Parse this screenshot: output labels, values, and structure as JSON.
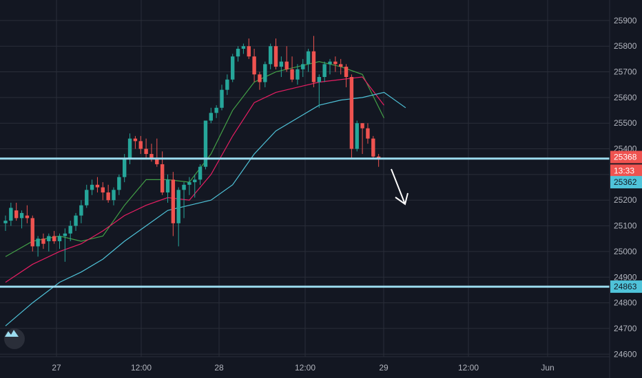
{
  "chart_data": {
    "type": "candlestick",
    "x_ticks": [
      "27",
      "12:00",
      "28",
      "12:00",
      "29",
      "12:00",
      "Jun"
    ],
    "y_ticks": [
      24600,
      24700,
      24800,
      24900,
      25000,
      25100,
      25200,
      25300,
      25400,
      25500,
      25600,
      25700,
      25800,
      25900
    ],
    "ylim": [
      24590,
      25980
    ],
    "grid": true,
    "candles": [
      [
        25110,
        25140,
        25080,
        25120
      ],
      [
        25120,
        25190,
        25100,
        25170
      ],
      [
        25160,
        25190,
        25120,
        25130
      ],
      [
        25130,
        25160,
        25090,
        25150
      ],
      [
        25140,
        25180,
        25110,
        25130
      ],
      [
        25130,
        25140,
        25000,
        25020
      ],
      [
        25020,
        25060,
        24980,
        25050
      ],
      [
        25050,
        25070,
        25010,
        25030
      ],
      [
        25040,
        25070,
        25000,
        25060
      ],
      [
        25060,
        25080,
        25030,
        25040
      ],
      [
        25040,
        25070,
        25010,
        25060
      ],
      [
        25060,
        25090,
        24960,
        25070
      ],
      [
        25070,
        25120,
        25040,
        25100
      ],
      [
        25100,
        25150,
        25080,
        25140
      ],
      [
        25140,
        25200,
        25110,
        25180
      ],
      [
        25180,
        25260,
        25170,
        25240
      ],
      [
        25240,
        25280,
        25220,
        25260
      ],
      [
        25260,
        25290,
        25230,
        25250
      ],
      [
        25250,
        25270,
        25200,
        25230
      ],
      [
        25230,
        25260,
        25190,
        25200
      ],
      [
        25200,
        25250,
        25180,
        25240
      ],
      [
        25240,
        25300,
        25220,
        25290
      ],
      [
        25290,
        25380,
        25270,
        25360
      ],
      [
        25360,
        25460,
        25340,
        25440
      ],
      [
        25440,
        25450,
        25400,
        25430
      ],
      [
        25430,
        25450,
        25380,
        25400
      ],
      [
        25400,
        25440,
        25360,
        25380
      ],
      [
        25380,
        25420,
        25350,
        25360
      ],
      [
        25360,
        25440,
        25330,
        25340
      ],
      [
        25340,
        25390,
        25220,
        25230
      ],
      [
        25230,
        25300,
        25190,
        25280
      ],
      [
        25280,
        25310,
        25060,
        25110
      ],
      [
        25110,
        25250,
        25020,
        25240
      ],
      [
        25240,
        25270,
        25130,
        25260
      ],
      [
        25260,
        25290,
        25220,
        25270
      ],
      [
        25270,
        25300,
        25210,
        25280
      ],
      [
        25280,
        25340,
        25260,
        25330
      ],
      [
        25330,
        25500,
        25320,
        25510
      ],
      [
        25510,
        25560,
        25500,
        25540
      ],
      [
        25540,
        25570,
        25520,
        25560
      ],
      [
        25560,
        25650,
        25550,
        25630
      ],
      [
        25630,
        25690,
        25610,
        25670
      ],
      [
        25670,
        25770,
        25660,
        25760
      ],
      [
        25760,
        25800,
        25740,
        25790
      ],
      [
        25790,
        25810,
        25770,
        25800
      ],
      [
        25800,
        25830,
        25750,
        25760
      ],
      [
        25760,
        25790,
        25660,
        25690
      ],
      [
        25690,
        25700,
        25630,
        25660
      ],
      [
        25660,
        25740,
        25640,
        25730
      ],
      [
        25730,
        25810,
        25710,
        25800
      ],
      [
        25800,
        25830,
        25710,
        25720
      ],
      [
        25720,
        25760,
        25680,
        25740
      ],
      [
        25740,
        25800,
        25700,
        25710
      ],
      [
        25710,
        25760,
        25660,
        25670
      ],
      [
        25670,
        25730,
        25650,
        25710
      ],
      [
        25710,
        25750,
        25680,
        25730
      ],
      [
        25730,
        25790,
        25700,
        25780
      ],
      [
        25780,
        25840,
        25640,
        25660
      ],
      [
        25660,
        25690,
        25560,
        25680
      ],
      [
        25680,
        25740,
        25660,
        25730
      ],
      [
        25730,
        25750,
        25690,
        25740
      ],
      [
        25740,
        25760,
        25700,
        25730
      ],
      [
        25730,
        25750,
        25690,
        25720
      ],
      [
        25720,
        25730,
        25640,
        25680
      ],
      [
        25680,
        25690,
        25360,
        25400
      ],
      [
        25400,
        25510,
        25390,
        25500
      ],
      [
        25500,
        25500,
        25380,
        25480
      ],
      [
        25480,
        25500,
        25420,
        25440
      ],
      [
        25440,
        25450,
        25360,
        25370
      ],
      [
        25370,
        25380,
        25330,
        25360
      ]
    ],
    "ma_fast": [
      [
        0,
        24980
      ],
      [
        5,
        25040
      ],
      [
        10,
        25060
      ],
      [
        14,
        25040
      ],
      [
        18,
        25060
      ],
      [
        22,
        25180
      ],
      [
        26,
        25280
      ],
      [
        30,
        25280
      ],
      [
        34,
        25270
      ],
      [
        38,
        25380
      ],
      [
        42,
        25550
      ],
      [
        46,
        25660
      ],
      [
        50,
        25700
      ],
      [
        54,
        25720
      ],
      [
        58,
        25740
      ],
      [
        62,
        25720
      ],
      [
        66,
        25690
      ],
      [
        70,
        25520
      ]
    ],
    "ma_mid": [
      [
        0,
        24880
      ],
      [
        5,
        24950
      ],
      [
        10,
        25000
      ],
      [
        14,
        25030
      ],
      [
        18,
        25080
      ],
      [
        22,
        25140
      ],
      [
        26,
        25180
      ],
      [
        30,
        25210
      ],
      [
        34,
        25200
      ],
      [
        38,
        25300
      ],
      [
        42,
        25450
      ],
      [
        46,
        25580
      ],
      [
        50,
        25620
      ],
      [
        54,
        25640
      ],
      [
        58,
        25660
      ],
      [
        62,
        25670
      ],
      [
        66,
        25680
      ],
      [
        70,
        25570
      ]
    ],
    "ma_slow": [
      [
        0,
        24710
      ],
      [
        5,
        24800
      ],
      [
        10,
        24880
      ],
      [
        14,
        24920
      ],
      [
        18,
        24970
      ],
      [
        22,
        25040
      ],
      [
        26,
        25100
      ],
      [
        30,
        25160
      ],
      [
        34,
        25180
      ],
      [
        38,
        25200
      ],
      [
        42,
        25260
      ],
      [
        46,
        25380
      ],
      [
        50,
        25470
      ],
      [
        54,
        25520
      ],
      [
        58,
        25570
      ],
      [
        62,
        25590
      ],
      [
        66,
        25600
      ],
      [
        70,
        25620
      ],
      [
        74,
        25560
      ]
    ],
    "h_lines": [
      25362,
      24863
    ],
    "price_tags": [
      {
        "label": "25368",
        "value": 25368,
        "color": "#ef5350"
      },
      {
        "label": "13:33",
        "value": 25315,
        "color": "#ef5350"
      },
      {
        "label": "25362",
        "value": 25270,
        "color": "#4fc3d9"
      },
      {
        "label": "24863",
        "value": 24863,
        "color": "#4fc3d9"
      }
    ]
  },
  "colors": {
    "up": "#26a69a",
    "down": "#ef5350",
    "ma_fast": "#43a047",
    "ma_mid": "#e91e63",
    "ma_slow": "#4fc3d9",
    "hline": "#9cdcef",
    "grid": "#2a2e39",
    "axis_text": "#b2b5be"
  }
}
